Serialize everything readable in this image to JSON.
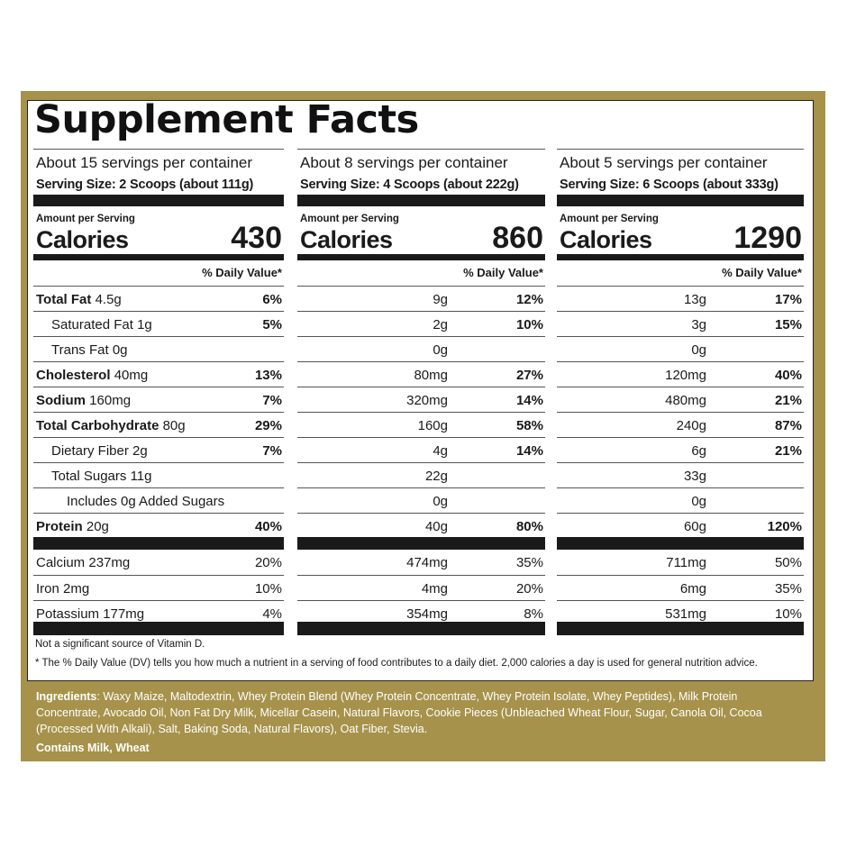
{
  "title": "Supplement Facts",
  "daily_value_label": "% Daily Value*",
  "amount_per_serving_label": "Amount per Serving",
  "calories_label": "Calories",
  "columns": [
    {
      "servings": "About 15 servings per container",
      "serving_size": "Serving Size:  2 Scoops (about 111g)",
      "calories": "430"
    },
    {
      "servings": "About 8 servings per container",
      "serving_size": "Serving Size: 4 Scoops (about 222g)",
      "calories": "860"
    },
    {
      "servings": "About 5 servings per container",
      "serving_size": "Serving Size: 6 Scoops (about 333g)",
      "calories": "1290"
    }
  ],
  "nutrients": [
    {
      "name": "Total Fat",
      "bold": true,
      "indent": 0,
      "amounts": [
        "4.5g",
        "9g",
        "13g"
      ],
      "dv": [
        "6%",
        "12%",
        "17%"
      ]
    },
    {
      "name": "Saturated Fat",
      "bold": false,
      "indent": 1,
      "amounts": [
        "1g",
        "2g",
        "3g"
      ],
      "dv": [
        "5%",
        "10%",
        "15%"
      ]
    },
    {
      "name": "Trans Fat",
      "bold": false,
      "indent": 1,
      "amounts": [
        "0g",
        "0g",
        "0g"
      ],
      "dv": [
        "",
        "",
        ""
      ]
    },
    {
      "name": "Cholesterol",
      "bold": true,
      "indent": 0,
      "amounts": [
        "40mg",
        "80mg",
        "120mg"
      ],
      "dv": [
        "13%",
        "27%",
        "40%"
      ]
    },
    {
      "name": "Sodium",
      "bold": true,
      "indent": 0,
      "amounts": [
        "160mg",
        "320mg",
        "480mg"
      ],
      "dv": [
        "7%",
        "14%",
        "21%"
      ]
    },
    {
      "name": "Total Carbohydrate",
      "bold": true,
      "indent": 0,
      "amounts": [
        "80g",
        "160g",
        "240g"
      ],
      "dv": [
        "29%",
        "58%",
        "87%"
      ]
    },
    {
      "name": "Dietary Fiber",
      "bold": false,
      "indent": 1,
      "amounts": [
        "2g",
        "4g",
        "6g"
      ],
      "dv": [
        "7%",
        "14%",
        "21%"
      ]
    },
    {
      "name": "Total Sugars",
      "bold": false,
      "indent": 1,
      "amounts": [
        "11g",
        "22g",
        "33g"
      ],
      "dv": [
        "",
        "",
        ""
      ]
    },
    {
      "name": "Includes 0g Added Sugars",
      "bold": false,
      "indent": 2,
      "amounts": [
        "",
        "0g",
        "0g"
      ],
      "dv": [
        "",
        "",
        ""
      ]
    },
    {
      "name": "Protein",
      "bold": true,
      "indent": 0,
      "amounts": [
        "20g",
        "40g",
        "60g"
      ],
      "dv": [
        "40%",
        "80%",
        "120%"
      ]
    }
  ],
  "minerals": [
    {
      "name": "Calcium",
      "amounts": [
        "237mg",
        "474mg",
        "711mg"
      ],
      "dv": [
        "20%",
        "35%",
        "50%"
      ]
    },
    {
      "name": "Iron",
      "amounts": [
        "2mg",
        "4mg",
        "6mg"
      ],
      "dv": [
        "10%",
        "20%",
        "35%"
      ]
    },
    {
      "name": "Potassium",
      "amounts": [
        "177mg",
        "354mg",
        "531mg"
      ],
      "dv": [
        "4%",
        "8%",
        "10%"
      ]
    }
  ],
  "note_vitamin_d": "Not a significant source of Vitamin D.",
  "note_dv": "*   The % Daily Value (DV) tells you how much a nutrient in a serving of food contributes to a daily diet. 2,000 calories a day is used for general nutrition advice.",
  "ingredients_label": "Ingredients",
  "ingredients_text": ": Waxy Maize, Maltodextrin, Whey Protein Blend (Whey Protein Concentrate, Whey Protein Isolate, Whey Peptides), Milk Protein Concentrate, Avocado Oil, Non Fat Dry Milk, Micellar Casein, Natural Flavors, Cookie Pieces (Unbleached Wheat Flour, Sugar, Canola Oil, Cocoa (Processed With Alkali), Salt, Baking Soda, Natural Flavors), Oat Fiber, Stevia.",
  "contains": "Contains Milk, Wheat",
  "colors": {
    "frame_gold": "#a6924b",
    "panel_bg": "#ffffff",
    "rule_black": "#1a1a1a"
  }
}
